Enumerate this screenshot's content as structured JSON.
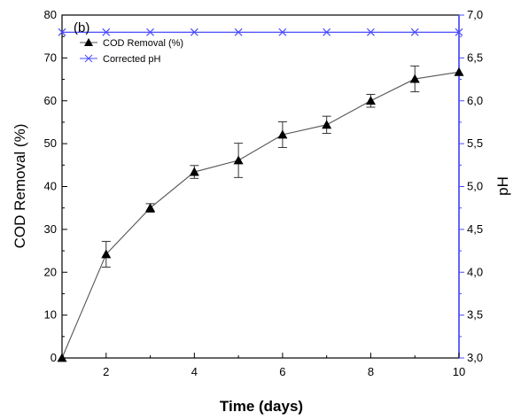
{
  "chart_data": {
    "type": "line",
    "panel_label": "(b)",
    "xlabel": "Time (days)",
    "ylabel": "COD Removal (%)",
    "y2label": "pH",
    "xlim": [
      1,
      10
    ],
    "ylim": [
      0,
      80
    ],
    "y2lim": [
      3.0,
      7.0
    ],
    "x_ticks": [
      2,
      4,
      6,
      8,
      10
    ],
    "x_tick_labels": [
      "2",
      "4",
      "6",
      "8",
      "10"
    ],
    "y_ticks": [
      0,
      10,
      20,
      30,
      40,
      50,
      60,
      70,
      80
    ],
    "y_tick_labels": [
      "0",
      "10",
      "20",
      "30",
      "40",
      "50",
      "60",
      "70",
      "80"
    ],
    "y2_ticks": [
      3.0,
      3.5,
      4.0,
      4.5,
      5.0,
      5.5,
      6.0,
      6.5,
      7.0
    ],
    "y2_tick_labels": [
      "3,0",
      "3,5",
      "4,0",
      "4,5",
      "5,0",
      "5,5",
      "6,0",
      "6,5",
      "7,0"
    ],
    "grid": false,
    "legend_position": "top-left",
    "series": [
      {
        "name": "COD Removal (%)",
        "axis": "left",
        "marker": "triangle",
        "color": "#000000",
        "line_color": "#555555",
        "x": [
          1,
          2,
          3,
          4,
          5,
          6,
          7,
          8,
          9,
          10
        ],
        "y": [
          0,
          24.2,
          35,
          43.4,
          46.1,
          52.1,
          54.4,
          60,
          65.1,
          66.7
        ],
        "err": [
          0,
          3,
          1,
          1.5,
          4,
          3,
          2,
          1.5,
          3,
          0
        ]
      },
      {
        "name": "Corrected pH",
        "axis": "right",
        "marker": "x",
        "color": "#4b4bff",
        "x": [
          1,
          2,
          3,
          4,
          5,
          6,
          7,
          8,
          9,
          10
        ],
        "y": [
          6.8,
          6.8,
          6.8,
          6.8,
          6.8,
          6.8,
          6.8,
          6.8,
          6.8,
          6.8
        ]
      }
    ]
  }
}
